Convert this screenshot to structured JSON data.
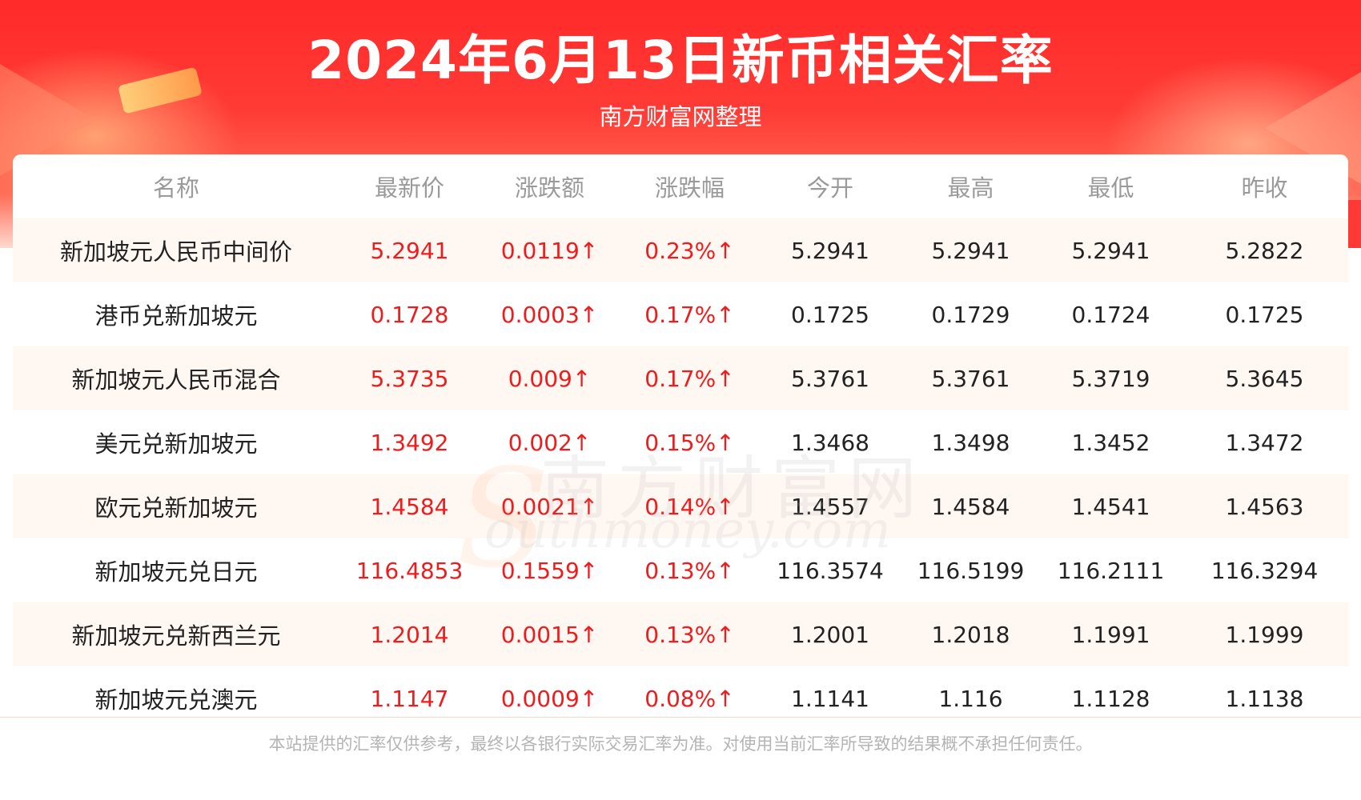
{
  "header": {
    "title": "2024年6月13日新币相关汇率",
    "subtitle": "南方财富网整理"
  },
  "watermark": {
    "cn": "南方财富网",
    "en": "outhmoney.com",
    "s": "S"
  },
  "table": {
    "columns": [
      "名称",
      "最新价",
      "涨跌额",
      "涨跌幅",
      "今开",
      "最高",
      "最低",
      "昨收"
    ],
    "rows": [
      {
        "name": "新加坡元人民币中间价",
        "latest": "5.2941",
        "change": "0.0119↑",
        "pct": "0.23%↑",
        "open": "5.2941",
        "high": "5.2941",
        "low": "5.2941",
        "prev": "5.2822"
      },
      {
        "name": "港币兑新加坡元",
        "latest": "0.1728",
        "change": "0.0003↑",
        "pct": "0.17%↑",
        "open": "0.1725",
        "high": "0.1729",
        "low": "0.1724",
        "prev": "0.1725"
      },
      {
        "name": "新加坡元人民币混合",
        "latest": "5.3735",
        "change": "0.009↑",
        "pct": "0.17%↑",
        "open": "5.3761",
        "high": "5.3761",
        "low": "5.3719",
        "prev": "5.3645"
      },
      {
        "name": "美元兑新加坡元",
        "latest": "1.3492",
        "change": "0.002↑",
        "pct": "0.15%↑",
        "open": "1.3468",
        "high": "1.3498",
        "low": "1.3452",
        "prev": "1.3472"
      },
      {
        "name": "欧元兑新加坡元",
        "latest": "1.4584",
        "change": "0.0021↑",
        "pct": "0.14%↑",
        "open": "1.4557",
        "high": "1.4584",
        "low": "1.4541",
        "prev": "1.4563"
      },
      {
        "name": "新加坡元兑日元",
        "latest": "116.4853",
        "change": "0.1559↑",
        "pct": "0.13%↑",
        "open": "116.3574",
        "high": "116.5199",
        "low": "116.2111",
        "prev": "116.3294"
      },
      {
        "name": "新加坡元兑新西兰元",
        "latest": "1.2014",
        "change": "0.0015↑",
        "pct": "0.13%↑",
        "open": "1.2001",
        "high": "1.2018",
        "low": "1.1991",
        "prev": "1.1999"
      },
      {
        "name": "新加坡元兑澳元",
        "latest": "1.1147",
        "change": "0.0009↑",
        "pct": "0.08%↑",
        "open": "1.1141",
        "high": "1.116",
        "low": "1.1128",
        "prev": "1.1138"
      }
    ]
  },
  "footer": {
    "disclaimer": "本站提供的汇率仅供参考，最终以各银行实际交易汇率为准。对使用当前汇率所导致的结果概不承担任何责任。"
  },
  "colors": {
    "banner_red": "#ff2a2a",
    "up_red": "#ee1c1c",
    "row_stripe": "#fff7f2",
    "header_text": "#9a9a9a"
  }
}
